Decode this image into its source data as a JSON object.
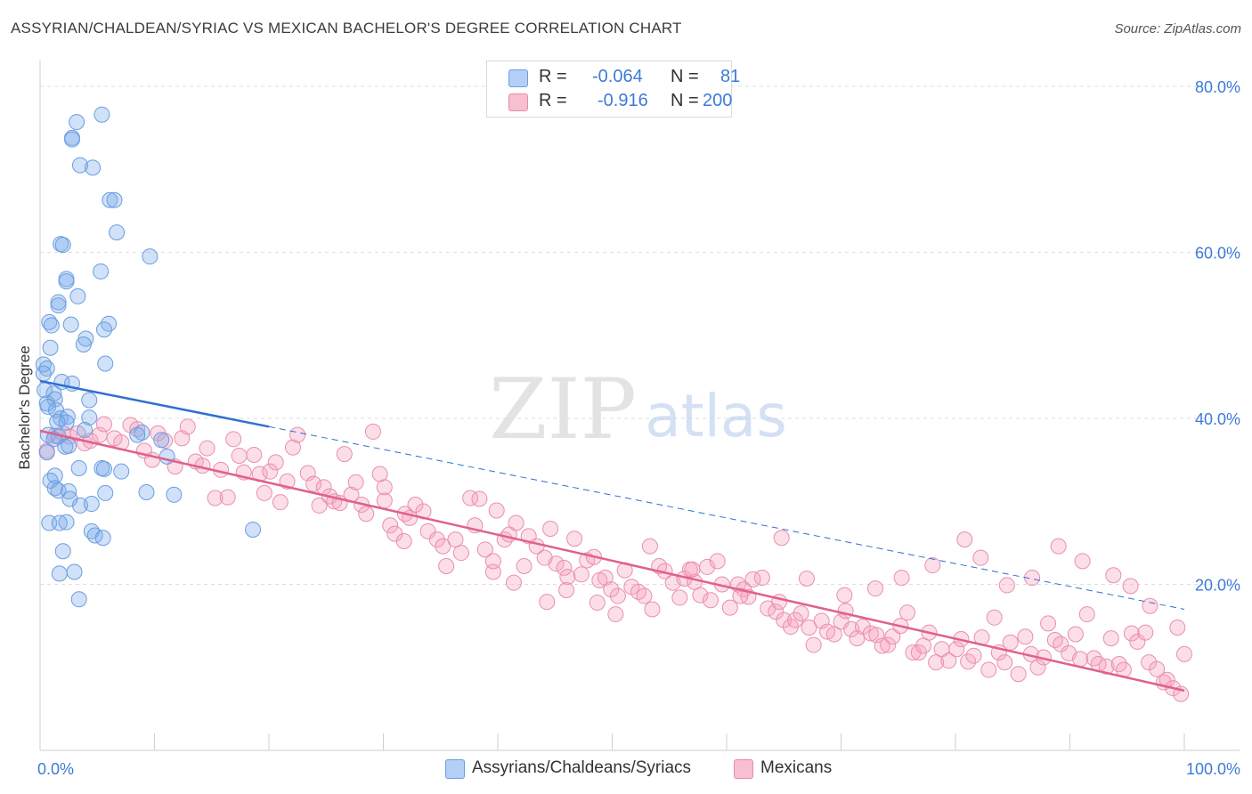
{
  "title": "ASSYRIAN/CHALDEAN/SYRIAC VS MEXICAN BACHELOR'S DEGREE CORRELATION CHART",
  "source": "Source: ZipAtlas.com",
  "watermark": {
    "zip": "ZIP",
    "atlas": "atlas"
  },
  "legend": {
    "rows": [
      {
        "r_label": "R =",
        "r_value": "-0.064",
        "n_label": "N =",
        "n_value": "81",
        "swatch_fill": "#b3cff5",
        "swatch_stroke": "#6b9fe0"
      },
      {
        "r_label": "R =",
        "r_value": "-0.916",
        "n_label": "N =",
        "n_value": "200",
        "swatch_fill": "#f7bfd0",
        "swatch_stroke": "#e88aa8"
      }
    ]
  },
  "bottom_legend": [
    {
      "label": "Assyrians/Chaldeans/Syriacs",
      "swatch_fill": "#b3cff5",
      "swatch_stroke": "#6b9fe0"
    },
    {
      "label": "Mexicans",
      "swatch_fill": "#f7bfd0",
      "swatch_stroke": "#e88aa8"
    }
  ],
  "chart_data": {
    "type": "scatter",
    "title": "ASSYRIAN/CHALDEAN/SYRIAC VS MEXICAN BACHELOR'S DEGREE CORRELATION CHART",
    "xlabel": "",
    "ylabel": "Bachelor's Degree",
    "xlim": [
      0,
      100
    ],
    "ylim": [
      0,
      80
    ],
    "x_tick_labels": [
      "0.0%",
      "100.0%"
    ],
    "y_tick_labels": [
      "20.0%",
      "40.0%",
      "60.0%",
      "80.0%"
    ],
    "y_ticks": [
      20,
      40,
      60,
      80
    ],
    "grid": true,
    "legend_position": "top-center",
    "colors": {
      "blue_fill": "rgba(120,170,235,0.35)",
      "blue_stroke": "#6a9ee0",
      "blue_line": "#2f6fd0",
      "pink_fill": "rgba(245,160,190,0.35)",
      "pink_stroke": "#e98fae",
      "pink_line": "#e0608e",
      "tick_label": "#3d7bd8",
      "grid": "#dedede"
    },
    "series": [
      {
        "name": "Assyrians/Chaldeans/Syriacs",
        "R": -0.064,
        "N": 81,
        "trend_solid": [
          [
            0,
            44.5
          ],
          [
            20,
            39.0
          ]
        ],
        "trend_dashed": [
          [
            20,
            39.0
          ],
          [
            100,
            17.0
          ]
        ],
        "points": [
          [
            5.4,
            76.6
          ],
          [
            3.2,
            75.7
          ],
          [
            2.8,
            73.8
          ],
          [
            2.8,
            73.6
          ],
          [
            3.5,
            70.5
          ],
          [
            4.6,
            70.2
          ],
          [
            6.1,
            66.3
          ],
          [
            6.5,
            66.3
          ],
          [
            6.7,
            62.4
          ],
          [
            1.8,
            61.0
          ],
          [
            2.0,
            60.9
          ],
          [
            9.6,
            59.5
          ],
          [
            5.3,
            57.7
          ],
          [
            2.3,
            56.8
          ],
          [
            2.3,
            56.5
          ],
          [
            3.3,
            54.7
          ],
          [
            1.6,
            54.0
          ],
          [
            1.6,
            53.6
          ],
          [
            0.8,
            51.6
          ],
          [
            1.0,
            51.2
          ],
          [
            2.7,
            51.3
          ],
          [
            6.0,
            51.4
          ],
          [
            5.6,
            50.7
          ],
          [
            4.0,
            49.6
          ],
          [
            3.8,
            48.9
          ],
          [
            0.9,
            48.5
          ],
          [
            5.7,
            46.6
          ],
          [
            0.3,
            46.5
          ],
          [
            0.6,
            46.0
          ],
          [
            0.3,
            45.4
          ],
          [
            1.9,
            44.4
          ],
          [
            2.8,
            44.2
          ],
          [
            0.4,
            43.4
          ],
          [
            1.2,
            43.0
          ],
          [
            1.3,
            42.3
          ],
          [
            4.3,
            42.2
          ],
          [
            0.6,
            41.8
          ],
          [
            0.7,
            41.4
          ],
          [
            1.4,
            41.0
          ],
          [
            1.8,
            40.0
          ],
          [
            2.4,
            40.2
          ],
          [
            4.3,
            40.1
          ],
          [
            1.5,
            39.6
          ],
          [
            2.3,
            39.5
          ],
          [
            3.9,
            38.6
          ],
          [
            0.7,
            38.0
          ],
          [
            1.6,
            37.8
          ],
          [
            1.2,
            37.5
          ],
          [
            2.2,
            36.6
          ],
          [
            2.5,
            36.7
          ],
          [
            8.9,
            38.3
          ],
          [
            10.6,
            37.4
          ],
          [
            11.1,
            35.4
          ],
          [
            0.6,
            35.9
          ],
          [
            3.4,
            34.0
          ],
          [
            5.4,
            34.0
          ],
          [
            5.6,
            33.9
          ],
          [
            7.1,
            33.6
          ],
          [
            1.3,
            33.1
          ],
          [
            0.9,
            32.5
          ],
          [
            1.3,
            31.6
          ],
          [
            1.6,
            31.3
          ],
          [
            2.5,
            31.2
          ],
          [
            5.7,
            31.0
          ],
          [
            9.3,
            31.1
          ],
          [
            11.7,
            30.8
          ],
          [
            2.6,
            30.3
          ],
          [
            3.5,
            29.5
          ],
          [
            4.5,
            29.7
          ],
          [
            0.8,
            27.4
          ],
          [
            1.7,
            27.4
          ],
          [
            2.3,
            27.5
          ],
          [
            4.5,
            26.4
          ],
          [
            4.8,
            25.9
          ],
          [
            5.5,
            25.6
          ],
          [
            2.0,
            24.0
          ],
          [
            18.6,
            26.6
          ],
          [
            1.7,
            21.3
          ],
          [
            3.0,
            21.5
          ],
          [
            3.4,
            18.2
          ],
          [
            8.5,
            38.0
          ]
        ]
      },
      {
        "name": "Mexicans",
        "R": -0.916,
        "N": 200,
        "trend_solid": [
          [
            0,
            38.5
          ],
          [
            100,
            7.2
          ]
        ],
        "points": [
          [
            0.6,
            36.1
          ],
          [
            1.3,
            37.9
          ],
          [
            2.0,
            38.2
          ],
          [
            2.6,
            37.8
          ],
          [
            3.3,
            38.2
          ],
          [
            3.9,
            37.0
          ],
          [
            4.4,
            37.3
          ],
          [
            5.2,
            38.0
          ],
          [
            5.6,
            39.3
          ],
          [
            6.5,
            37.6
          ],
          [
            7.1,
            37.1
          ],
          [
            7.9,
            39.2
          ],
          [
            8.5,
            38.7
          ],
          [
            9.1,
            36.1
          ],
          [
            9.8,
            35.0
          ],
          [
            10.3,
            38.2
          ],
          [
            10.9,
            37.3
          ],
          [
            11.8,
            34.2
          ],
          [
            12.4,
            37.6
          ],
          [
            12.9,
            39.0
          ],
          [
            13.6,
            34.8
          ],
          [
            14.2,
            34.3
          ],
          [
            14.6,
            36.4
          ],
          [
            15.3,
            30.4
          ],
          [
            15.8,
            33.8
          ],
          [
            16.4,
            30.5
          ],
          [
            16.9,
            37.5
          ],
          [
            17.4,
            35.5
          ],
          [
            17.8,
            33.5
          ],
          [
            18.7,
            35.6
          ],
          [
            19.2,
            33.3
          ],
          [
            19.6,
            31.0
          ],
          [
            20.1,
            33.6
          ],
          [
            20.6,
            34.7
          ],
          [
            21.0,
            29.9
          ],
          [
            21.6,
            32.4
          ],
          [
            22.1,
            36.5
          ],
          [
            22.5,
            38.0
          ],
          [
            23.4,
            33.4
          ],
          [
            23.9,
            32.1
          ],
          [
            24.4,
            29.5
          ],
          [
            24.8,
            31.7
          ],
          [
            25.3,
            30.6
          ],
          [
            25.7,
            30.0
          ],
          [
            26.2,
            29.8
          ],
          [
            26.6,
            35.7
          ],
          [
            27.2,
            30.8
          ],
          [
            27.6,
            32.3
          ],
          [
            28.1,
            29.6
          ],
          [
            28.5,
            28.5
          ],
          [
            29.1,
            38.4
          ],
          [
            29.7,
            33.3
          ],
          [
            30.1,
            30.1
          ],
          [
            30.6,
            27.1
          ],
          [
            31.0,
            26.1
          ],
          [
            31.9,
            28.5
          ],
          [
            32.3,
            28.0
          ],
          [
            32.8,
            29.6
          ],
          [
            33.5,
            28.8
          ],
          [
            33.9,
            26.4
          ],
          [
            34.7,
            25.4
          ],
          [
            35.2,
            24.6
          ],
          [
            35.5,
            22.2
          ],
          [
            36.3,
            25.4
          ],
          [
            36.8,
            23.8
          ],
          [
            37.6,
            30.4
          ],
          [
            38.0,
            27.1
          ],
          [
            38.4,
            30.3
          ],
          [
            38.9,
            24.2
          ],
          [
            39.6,
            21.5
          ],
          [
            39.9,
            28.9
          ],
          [
            40.6,
            25.4
          ],
          [
            41.0,
            26.0
          ],
          [
            41.6,
            27.4
          ],
          [
            42.3,
            22.2
          ],
          [
            42.7,
            25.8
          ],
          [
            43.4,
            24.6
          ],
          [
            44.1,
            23.2
          ],
          [
            44.6,
            26.7
          ],
          [
            45.1,
            22.5
          ],
          [
            45.8,
            22.0
          ],
          [
            46.1,
            20.9
          ],
          [
            46.7,
            25.5
          ],
          [
            47.3,
            21.2
          ],
          [
            47.8,
            22.9
          ],
          [
            48.4,
            23.3
          ],
          [
            48.9,
            20.5
          ],
          [
            49.4,
            20.8
          ],
          [
            49.9,
            19.4
          ],
          [
            50.5,
            18.6
          ],
          [
            51.1,
            21.7
          ],
          [
            51.7,
            19.7
          ],
          [
            52.3,
            19.1
          ],
          [
            52.8,
            18.6
          ],
          [
            53.3,
            24.6
          ],
          [
            54.1,
            22.2
          ],
          [
            54.6,
            21.6
          ],
          [
            55.3,
            20.2
          ],
          [
            55.9,
            18.4
          ],
          [
            56.3,
            20.7
          ],
          [
            56.8,
            21.8
          ],
          [
            57.2,
            20.3
          ],
          [
            57.7,
            18.7
          ],
          [
            58.3,
            22.1
          ],
          [
            58.6,
            18.1
          ],
          [
            59.2,
            22.8
          ],
          [
            59.6,
            20.0
          ],
          [
            60.3,
            17.2
          ],
          [
            61.0,
            20.0
          ],
          [
            61.5,
            19.4
          ],
          [
            61.9,
            18.5
          ],
          [
            62.3,
            20.6
          ],
          [
            63.1,
            20.8
          ],
          [
            63.6,
            17.1
          ],
          [
            64.3,
            16.7
          ],
          [
            64.6,
            17.9
          ],
          [
            65.0,
            15.7
          ],
          [
            65.6,
            14.9
          ],
          [
            66.0,
            15.7
          ],
          [
            66.5,
            16.5
          ],
          [
            67.2,
            14.8
          ],
          [
            67.6,
            12.7
          ],
          [
            68.3,
            15.6
          ],
          [
            68.8,
            14.3
          ],
          [
            69.4,
            14.0
          ],
          [
            70.0,
            15.5
          ],
          [
            70.4,
            16.8
          ],
          [
            70.9,
            14.6
          ],
          [
            71.4,
            13.5
          ],
          [
            71.9,
            14.9
          ],
          [
            72.6,
            14.1
          ],
          [
            73.1,
            13.9
          ],
          [
            73.6,
            12.6
          ],
          [
            74.1,
            12.7
          ],
          [
            74.5,
            13.7
          ],
          [
            75.2,
            15.0
          ],
          [
            75.8,
            16.6
          ],
          [
            76.3,
            11.8
          ],
          [
            76.8,
            11.8
          ],
          [
            77.2,
            12.6
          ],
          [
            77.7,
            14.2
          ],
          [
            78.3,
            10.6
          ],
          [
            78.8,
            12.2
          ],
          [
            79.4,
            10.8
          ],
          [
            80.1,
            12.2
          ],
          [
            80.5,
            13.4
          ],
          [
            81.1,
            10.7
          ],
          [
            81.6,
            11.4
          ],
          [
            82.3,
            13.6
          ],
          [
            82.9,
            9.7
          ],
          [
            83.4,
            16.0
          ],
          [
            83.8,
            11.8
          ],
          [
            84.3,
            10.6
          ],
          [
            84.8,
            13.0
          ],
          [
            85.5,
            9.2
          ],
          [
            86.1,
            13.7
          ],
          [
            86.6,
            11.6
          ],
          [
            87.2,
            10.0
          ],
          [
            87.7,
            11.2
          ],
          [
            88.1,
            15.3
          ],
          [
            88.7,
            13.3
          ],
          [
            89.2,
            12.8
          ],
          [
            89.9,
            11.7
          ],
          [
            90.5,
            14.0
          ],
          [
            90.9,
            11.0
          ],
          [
            91.5,
            16.4
          ],
          [
            92.1,
            11.1
          ],
          [
            92.5,
            10.4
          ],
          [
            93.2,
            10.1
          ],
          [
            93.6,
            13.5
          ],
          [
            94.3,
            10.4
          ],
          [
            94.7,
            9.7
          ],
          [
            95.4,
            14.1
          ],
          [
            95.9,
            13.1
          ],
          [
            96.6,
            14.2
          ],
          [
            96.9,
            10.6
          ],
          [
            97.6,
            9.8
          ],
          [
            98.2,
            8.2
          ],
          [
            98.5,
            8.5
          ],
          [
            99.0,
            7.5
          ],
          [
            99.7,
            6.8
          ],
          [
            100.0,
            11.6
          ],
          [
            99.4,
            14.8
          ],
          [
            97.0,
            17.4
          ],
          [
            95.3,
            19.8
          ],
          [
            93.8,
            21.1
          ],
          [
            91.1,
            22.8
          ],
          [
            89.0,
            24.6
          ],
          [
            86.7,
            20.8
          ],
          [
            84.5,
            19.9
          ],
          [
            82.2,
            23.2
          ],
          [
            80.8,
            25.4
          ],
          [
            78.0,
            22.3
          ],
          [
            75.3,
            20.8
          ],
          [
            73.0,
            19.5
          ],
          [
            70.3,
            18.7
          ],
          [
            67.0,
            20.7
          ],
          [
            64.8,
            25.6
          ],
          [
            61.2,
            18.6
          ],
          [
            57.0,
            21.8
          ],
          [
            53.5,
            17.0
          ],
          [
            50.3,
            16.4
          ],
          [
            48.7,
            17.8
          ],
          [
            46.0,
            19.3
          ],
          [
            44.3,
            17.9
          ],
          [
            41.4,
            20.2
          ],
          [
            39.6,
            22.8
          ],
          [
            31.8,
            25.2
          ],
          [
            30.1,
            31.7
          ]
        ]
      }
    ]
  }
}
